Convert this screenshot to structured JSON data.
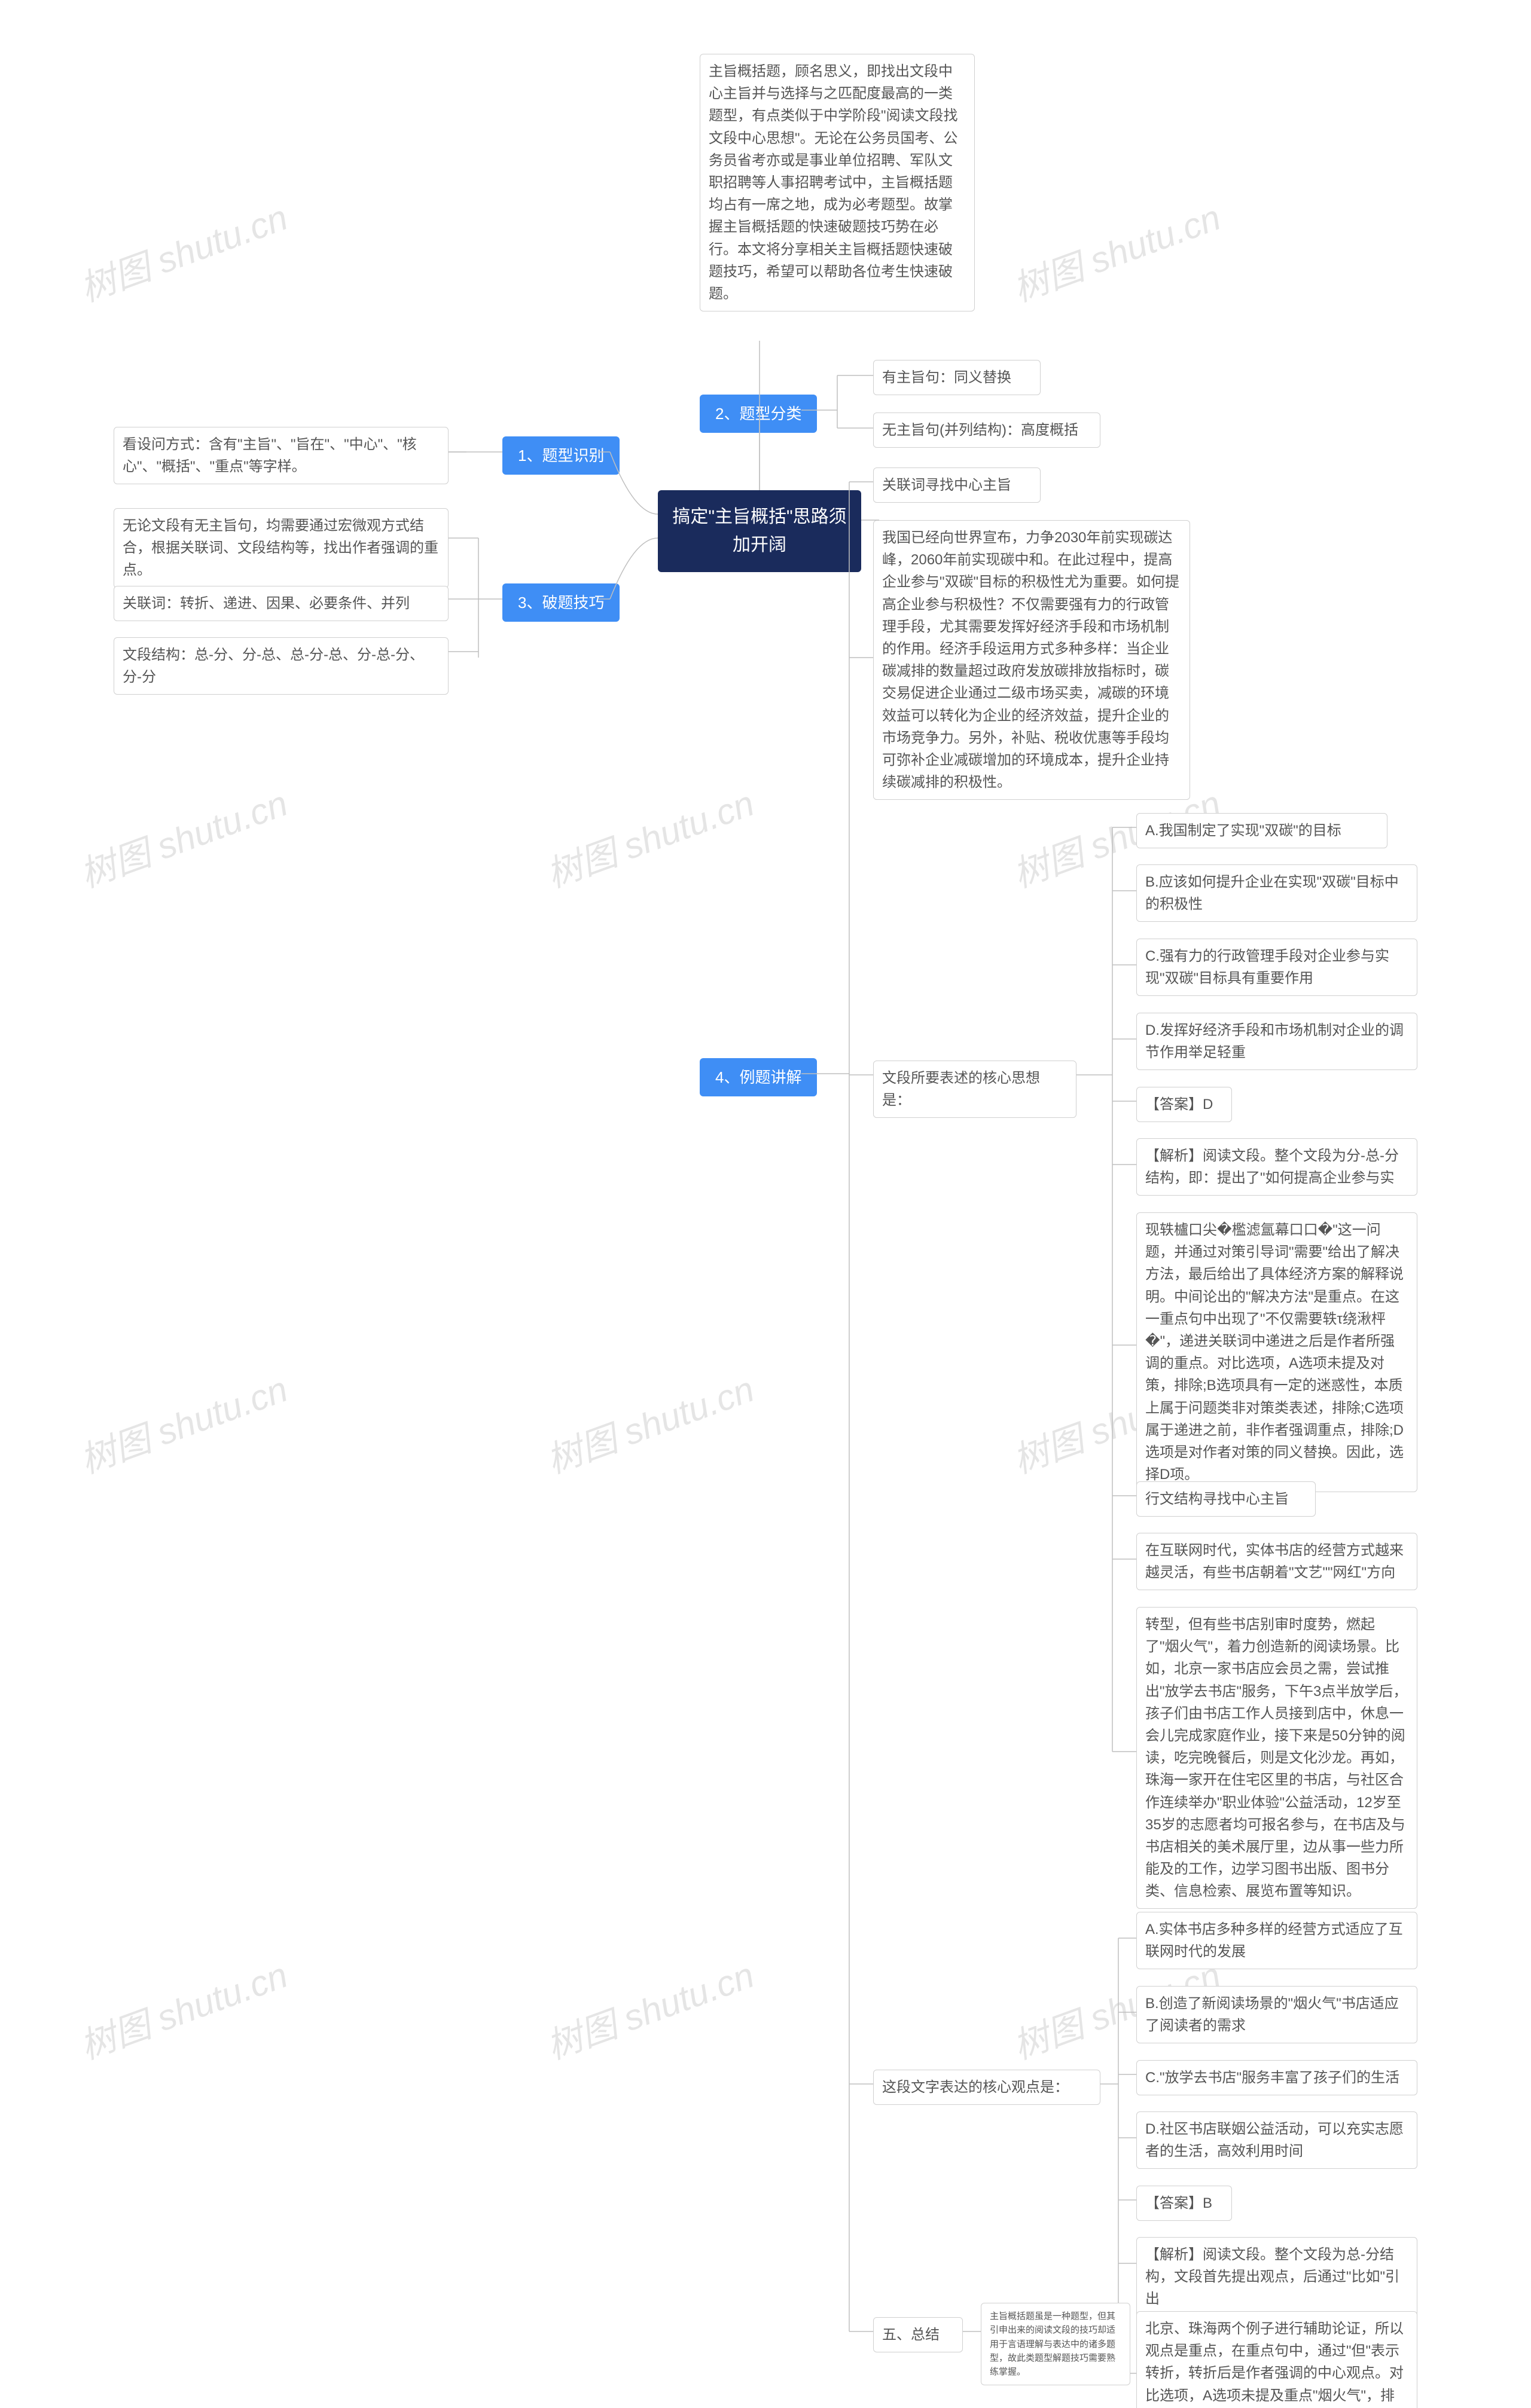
{
  "colors": {
    "root_bg": "#1a2b5c",
    "root_text": "#ffffff",
    "blue_bg": "#3f8ef5",
    "blue_text": "#ffffff",
    "leaf_bg": "#ffffff",
    "leaf_border": "#d0d0d0",
    "leaf_text": "#555555",
    "connector": "#bfbfbf",
    "watermark": "rgba(0,0,0,0.10)"
  },
  "root": {
    "title": "搞定\"主旨概括\"思路须\n加开阔"
  },
  "branches": {
    "b1": {
      "label": "1、题型识别"
    },
    "b2": {
      "label": "2、题型分类"
    },
    "b3": {
      "label": "3、破题技巧"
    },
    "b4": {
      "label": "4、例题讲解"
    },
    "b5": {
      "label": "五、总结"
    }
  },
  "leaves": {
    "l_intro": "主旨概括题，顾名思义，即找出文段中心主旨并与选择与之匹配度最高的一类题型，有点类似于中学阶段\"阅读文段找文段中心思想\"。无论在公务员国考、公务员省考亦或是事业单位招聘、军队文职招聘等人事招聘考试中，主旨概括题均占有一席之地，成为必考题型。故掌握主旨概括题的快速破题技巧势在必行。本文将分享相关主旨概括题快速破题技巧，希望可以帮助各位考生快速破题。",
    "l_b1_1": "看设问方式：含有\"主旨\"、\"旨在\"、\"中心\"、\"核心\"、\"概括\"、\"重点\"等字样。",
    "l_b2_1": "有主旨句：同义替换",
    "l_b2_2": "无主旨句(并列结构)：高度概括",
    "l_b3_1": "无论文段有无主旨句，均需要通过宏微观方式结合，根据关联词、文段结构等，找出作者强调的重点。",
    "l_b3_2": "关联词：转折、递进、因果、必要条件、并列",
    "l_b3_3": "文段结构：总-分、分-总、总-分-总、分-总-分、分-分",
    "l_b4_head1": "关联词寻找中心主旨",
    "l_b4_passage1": "我国已经向世界宣布，力争2030年前实现碳达峰，2060年前实现碳中和。在此过程中，提高企业参与\"双碳\"目标的积极性尤为重要。如何提高企业参与积极性？不仅需要强有力的行政管理手段，尤其需要发挥好经济手段和市场机制的作用。经济手段运用方式多种多样：当企业碳减排的数量超过政府发放碳排放指标时，碳交易促进企业通过二级市场买卖，减碳的环境效益可以转化为企业的经济效益，提升企业的市场竞争力。另外，补贴、税收优惠等手段均可弥补企业减碳增加的环境成本，提升企业持续碳减排的积极性。",
    "l_b4_q1": "文段所要表述的核心思想是：",
    "l_b4_A1": "A.我国制定了实现\"双碳\"的目标",
    "l_b4_B1": "B.应该如何提升企业在实现\"双碳\"目标中的积极性",
    "l_b4_C1": "C.强有力的行政管理手段对企业参与实现\"双碳\"目标具有重要作用",
    "l_b4_D1": "D.发挥好经济手段和市场机制对企业的调节作用举足轻重",
    "l_b4_ans1": "【答案】D",
    "l_b4_exp1a": "【解析】阅读文段。整个文段为分-总-分结构，即：提出了\"如何提高企业参与实",
    "l_b4_exp1b": "现轶櫨口尖�檻滤氲幕口口�\"这一问题，并通过对策引导词\"需要\"给出了解决方法，最后给出了具体经济方案的解释说明。中间论出的\"解决方法\"是重点。在这一重点句中出现了\"不仅需要轶τ绕湫枰�\"，递进关联词中递进之后是作者所强调的重点。对比选项，A选项未提及对策，排除;B选项具有一定的迷惑性，本质上属于问题类非对策类表述，排除;C选项属于递进之前，非作者强调重点，排除;D选项是对作者对策的同义替换。因此，选择D项。",
    "l_b4_head2": "行文结构寻找中心主旨",
    "l_b4_passage2a": "在互联网时代，实体书店的经营方式越来越灵活，有些书店朝着\"文艺\"\"网红\"方向",
    "l_b4_passage2b": "转型，但有些书店别审时度势，燃起了\"烟火气\"，着力创造新的阅读场景。比如，北京一家书店应会员之需，尝试推出\"放学去书店\"服务，下午3点半放学后，孩子们由书店工作人员接到店中，休息一会儿完成家庭作业，接下来是50分钟的阅读，吃完晚餐后，则是文化沙龙。再如，珠海一家开在住宅区里的书店，与社区合作连续举办\"职业体验\"公益活动，12岁至35岁的志愿者均可报名参与，在书店及与书店相关的美术展厅里，边从事一些力所能及的工作，边学习图书出版、图书分类、信息检索、展览布置等知识。",
    "l_b4_q2": "这段文字表达的核心观点是：",
    "l_b4_A2": "A.实体书店多种多样的经营方式适应了互联网时代的发展",
    "l_b4_B2": "B.创造了新阅读场景的\"烟火气\"书店适应了阅读者的需求",
    "l_b4_C2": "C.\"放学去书店\"服务丰富了孩子们的生活",
    "l_b4_D2": "D.社区书店联姻公益活动，可以充实志愿者的生活，高效利用时间",
    "l_b4_ans2": "【答案】B",
    "l_b4_exp2a": "【解析】阅读文段。整个文段为总-分结构，文段首先提出观点，后通过\"比如\"引出",
    "l_b4_exp2b": "北京、珠海两个例子进行辅助论证，所以观点是重点，在重点句中，通过\"但\"表示转折，转折后是作者强调的中心观点。对比选项，A选项未提及重点\"烟火气\"，排除;B选项对应作者观点的同义替换，为正确选项;C选项、D选项均对应例举论证，非重点。因此，选择B项。",
    "l_b5_1": "主旨概括题虽是一种题型，但其引申出来的阅读文段的技巧却适用于言语理解与表达中的诸多题型，故此类题型解题技巧需要熟练掌握。"
  },
  "watermark": "树图 shutu.cn"
}
